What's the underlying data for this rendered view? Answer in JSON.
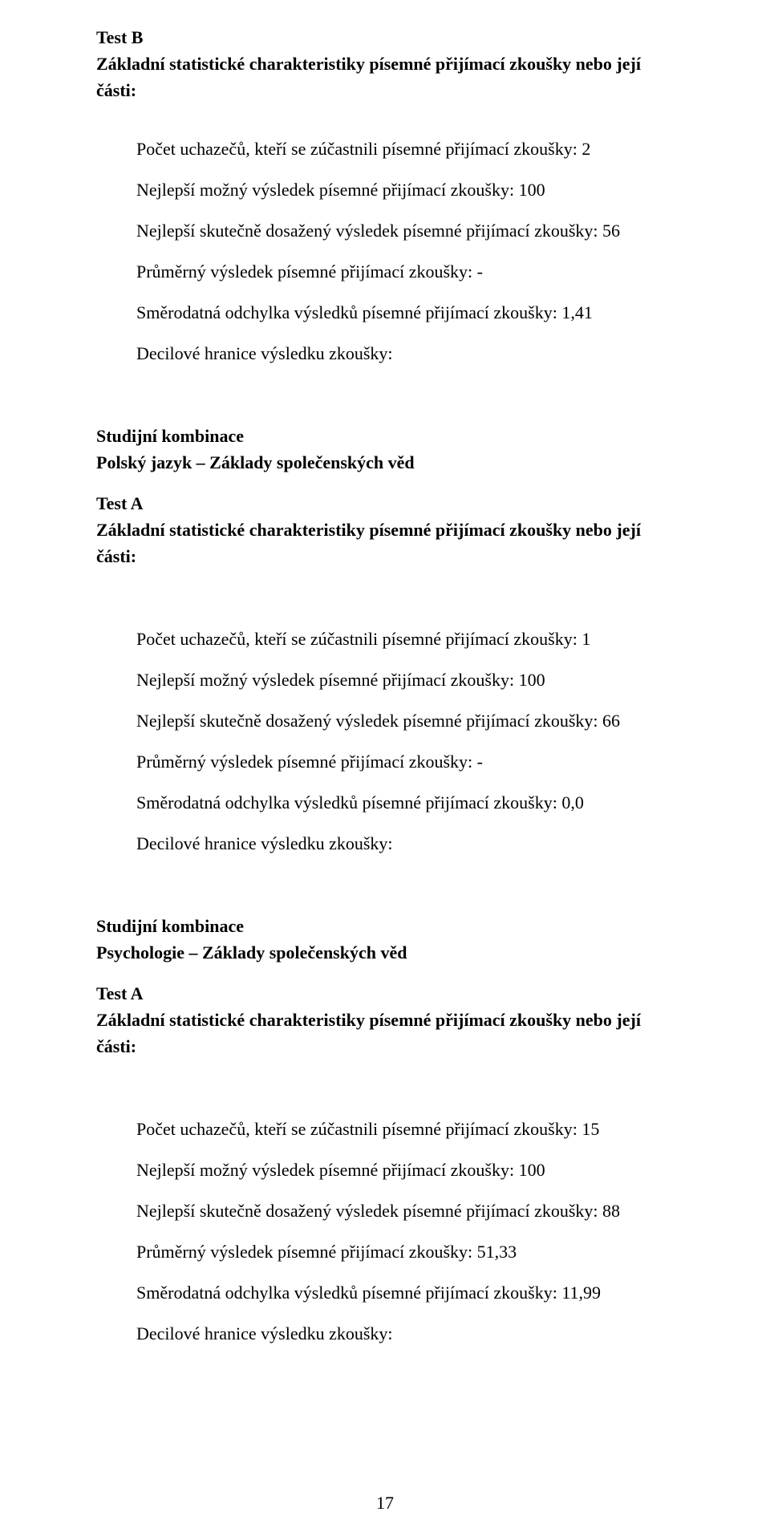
{
  "sectionB": {
    "title": "Test B",
    "subtitle": "Základní statistické charakteristiky písemné přijímací zkoušky nebo její části:",
    "lines": {
      "count": "Počet uchazečů, kteří se zúčastnili písemné přijímací zkoušky: 2",
      "bestPossible": "Nejlepší možný výsledek písemné přijímací zkoušky: 100",
      "bestActual": "Nejlepší skutečně dosažený výsledek písemné přijímací zkoušky: 56",
      "average": "Průměrný výsledek písemné přijímací zkoušky: -",
      "stddev": "Směrodatná odchylka výsledků písemné přijímací zkoušky: 1,41",
      "decile": "Decilové hranice výsledku zkoušky:"
    }
  },
  "sectionPolsky": {
    "heading": "Studijní kombinace",
    "subheading": "Polský jazyk – Základy společenských věd",
    "title": "Test A",
    "subtitle": "Základní statistické charakteristiky písemné přijímací zkoušky nebo její části:",
    "lines": {
      "count": "Počet uchazečů, kteří se zúčastnili písemné přijímací zkoušky: 1",
      "bestPossible": "Nejlepší možný výsledek písemné přijímací zkoušky: 100",
      "bestActual": "Nejlepší skutečně dosažený výsledek písemné přijímací zkoušky: 66",
      "average": "Průměrný výsledek písemné přijímací zkoušky: -",
      "stddev": "Směrodatná odchylka výsledků písemné přijímací zkoušky: 0,0",
      "decile": "Decilové hranice výsledku zkoušky:"
    }
  },
  "sectionPsych": {
    "heading": "Studijní kombinace",
    "subheading": "Psychologie – Základy společenských věd",
    "title": "Test A",
    "subtitle": "Základní statistické charakteristiky písemné přijímací zkoušky nebo její části:",
    "lines": {
      "count": "Počet uchazečů, kteří se zúčastnili písemné přijímací zkoušky: 15",
      "bestPossible": "Nejlepší možný výsledek písemné přijímací zkoušky: 100",
      "bestActual": "Nejlepší skutečně dosažený výsledek písemné přijímací zkoušky: 88",
      "average": "Průměrný výsledek písemné přijímací zkoušky: 51,33",
      "stddev": "Směrodatná odchylka výsledků písemné přijímací zkoušky: 11,99",
      "decile": "Decilové hranice výsledku zkoušky:"
    }
  },
  "pageNumber": "17"
}
